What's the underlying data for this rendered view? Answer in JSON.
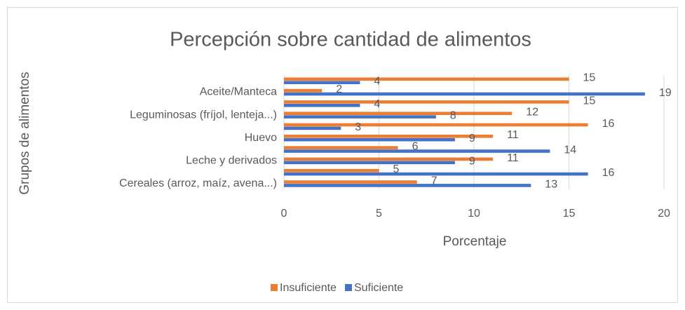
{
  "chart_data": {
    "type": "bar",
    "orientation": "horizontal",
    "title": "Percepción sobre cantidad de alimentos",
    "x_label": "Porcentaje",
    "y_label": "Grupos de alimentos",
    "categories": [
      "Cereales (arroz, maíz, avena...)",
      null,
      "Leche y derivados ",
      null,
      "Huevo",
      null,
      "Leguminosas (fríjol, lenteja...)",
      null,
      "Aceite/Manteca",
      null
    ],
    "series": [
      {
        "name": "Insuficiente",
        "color": "#ED7D31",
        "values": [
          7,
          5,
          11,
          6,
          11,
          16,
          12,
          15,
          2,
          15
        ]
      },
      {
        "name": "Suficiente",
        "color": "#4472C4",
        "values": [
          13,
          16,
          9,
          14,
          9,
          3,
          8,
          4,
          19,
          4
        ]
      }
    ],
    "xlim": [
      0,
      20
    ],
    "xticks": [
      0,
      5,
      10,
      15,
      20
    ],
    "grid": true,
    "legend": "bottom"
  }
}
